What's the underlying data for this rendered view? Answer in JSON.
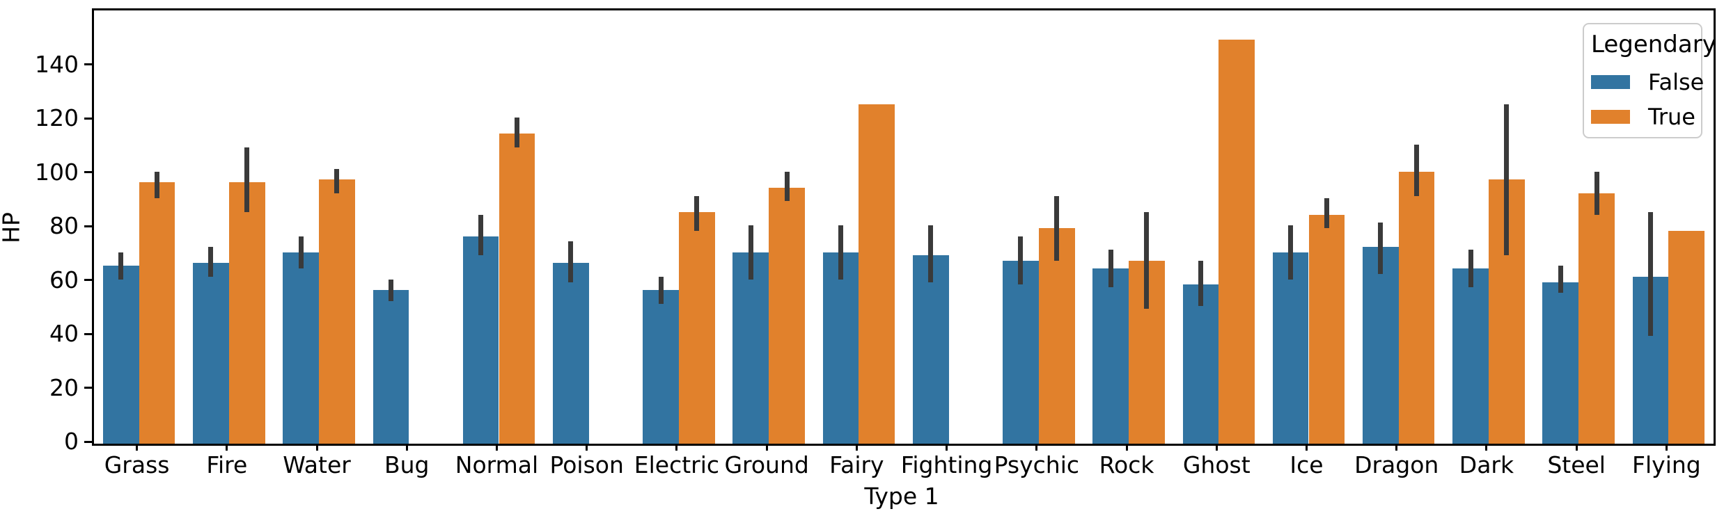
{
  "chart_data": {
    "type": "bar",
    "title": "",
    "xlabel": "Type 1",
    "ylabel": "HP",
    "categories": [
      "Grass",
      "Fire",
      "Water",
      "Bug",
      "Normal",
      "Poison",
      "Electric",
      "Ground",
      "Fairy",
      "Fighting",
      "Psychic",
      "Rock",
      "Ghost",
      "Ice",
      "Dragon",
      "Dark",
      "Steel",
      "Flying"
    ],
    "series": [
      {
        "name": "False",
        "color": "#3274a1",
        "values": [
          66,
          67,
          71,
          57,
          77,
          67,
          57,
          71,
          71,
          70,
          68,
          65,
          59,
          71,
          73,
          65,
          60,
          62
        ],
        "ci_low": [
          61,
          62,
          65,
          53,
          70,
          60,
          52,
          61,
          61,
          60,
          59,
          58,
          51,
          61,
          63,
          58,
          56,
          40
        ],
        "ci_high": [
          71,
          73,
          77,
          61,
          85,
          75,
          62,
          81,
          81,
          81,
          77,
          72,
          68,
          81,
          82,
          72,
          66,
          86
        ]
      },
      {
        "name": "True",
        "color": "#e1812c",
        "values": [
          97,
          97,
          98,
          null,
          115,
          null,
          86,
          95,
          126,
          null,
          80,
          68,
          150,
          85,
          101,
          98,
          93,
          79
        ],
        "ci_low": [
          91,
          86,
          93,
          null,
          110,
          null,
          79,
          90,
          null,
          null,
          68,
          50,
          null,
          80,
          92,
          70,
          85,
          null
        ],
        "ci_high": [
          101,
          110,
          102,
          null,
          121,
          null,
          92,
          101,
          null,
          null,
          92,
          86,
          null,
          91,
          111,
          126,
          101,
          null
        ]
      }
    ],
    "ylim": [
      0,
      160.8
    ],
    "yticks": [
      0,
      20,
      40,
      60,
      80,
      100,
      120,
      140
    ],
    "grid": false,
    "legend": {
      "title": "Legendary",
      "position": "upper right"
    },
    "error_bar_color": "#3a3a3a",
    "background_color": "#ffffff",
    "spine_color": "#000000"
  }
}
